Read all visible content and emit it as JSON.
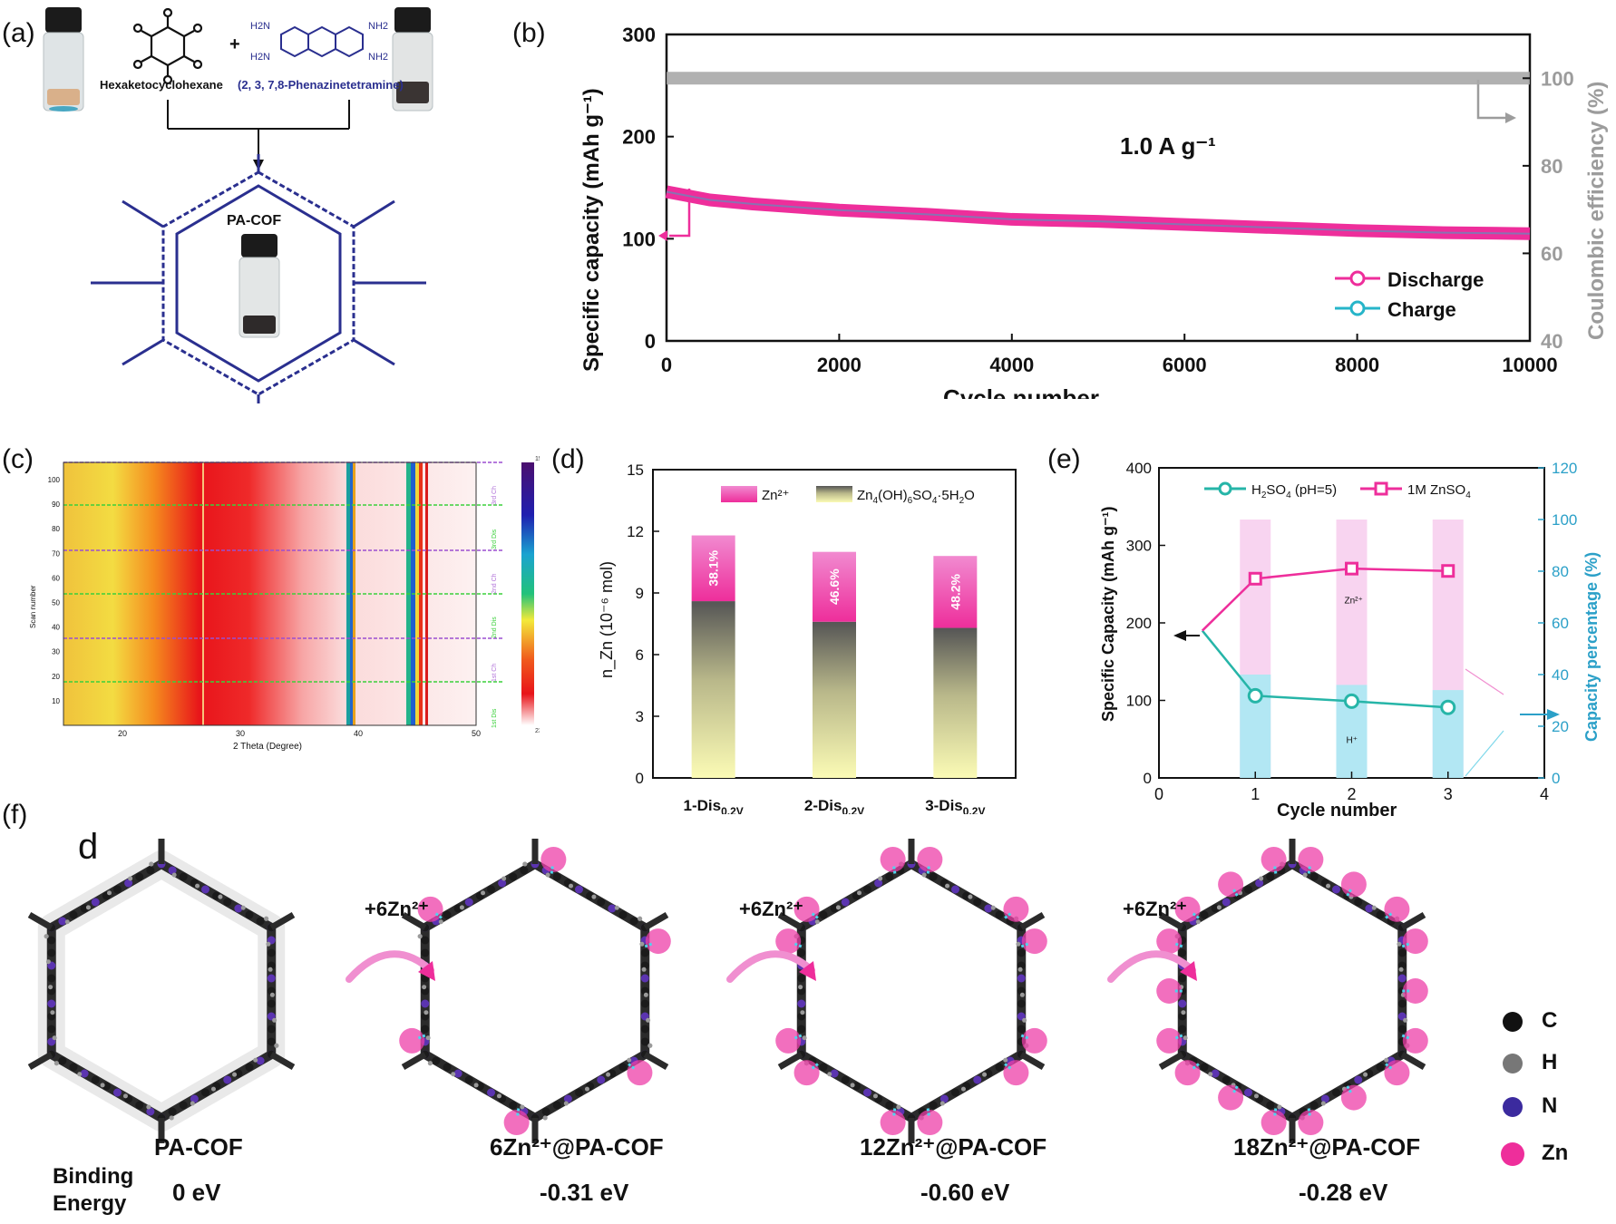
{
  "colors": {
    "pink": "#ee2e9b",
    "cyan": "#26b5c9",
    "gray": "#a9a9a9",
    "navy": "#1f2a8a",
    "purple": "#6b3fb5",
    "black": "#111111"
  },
  "panel_a": {
    "label": "(a)",
    "plus": "+",
    "reagent1": "Hexaketocyclohexane",
    "reagent2": "(2, 3, 7,8-Phenazinetetramine)",
    "amine_labels": [
      "H2N",
      "NH2",
      "H2N",
      "NH2"
    ],
    "product": "PA-COF"
  },
  "panel_c": {
    "label": "(c)",
    "xlabel": "2 Theta (Degree)",
    "ylabel": "Scan number",
    "xticks": [
      "20",
      "30",
      "40",
      "50"
    ],
    "yticks": [
      "10",
      "20",
      "30",
      "40",
      "50",
      "60",
      "70",
      "80",
      "90",
      "100"
    ],
    "colorbar_top": "1500",
    "colorbar_bottom": "230",
    "segments": [
      "1st Dis",
      "1st Ch",
      "2nd Dis",
      "2nd Ch",
      "3rd Dis",
      "3rd Ch"
    ]
  },
  "panel_f": {
    "label": "(f)",
    "corner": "d",
    "steps": [
      "+6Zn²⁺",
      "+6Zn²⁺",
      "+6Zn²⁺"
    ],
    "names": [
      "PA-COF",
      "6Zn²⁺@PA-COF",
      "12Zn²⁺@PA-COF",
      "18Zn²⁺@PA-COF"
    ],
    "energies": [
      "0 eV",
      "-0.31 eV",
      "-0.60 eV",
      "-0.28 eV"
    ],
    "binding_label_1": "Binding",
    "binding_label_2": "Energy",
    "legend": [
      {
        "label": "C"
      },
      {
        "label": "H"
      },
      {
        "label": "N"
      },
      {
        "label": "Zn"
      }
    ]
  },
  "chart_data": [
    {
      "id": "b",
      "label": "(b)",
      "type": "line",
      "xlabel": "Cycle number",
      "ylabel": "Specific capacity (mAh g⁻¹)",
      "y2label": "Coulombic efficiency (%)",
      "annotation": "1.0 A g⁻¹",
      "xlim": [
        0,
        10000
      ],
      "ylim": [
        0,
        300
      ],
      "y2lim": [
        40,
        110
      ],
      "xticks": [
        0,
        2000,
        4000,
        6000,
        8000,
        10000
      ],
      "yticks": [
        0,
        100,
        200,
        300
      ],
      "y2ticks": [
        40,
        60,
        80,
        100
      ],
      "series": [
        {
          "name": "Discharge",
          "x": [
            0,
            500,
            1000,
            2000,
            3000,
            4000,
            5000,
            6000,
            7000,
            8000,
            9000,
            10000
          ],
          "values": [
            146,
            138,
            134,
            128,
            124,
            119,
            117,
            114,
            111,
            108,
            106,
            105
          ]
        },
        {
          "name": "Charge",
          "x": [
            0,
            500,
            1000,
            2000,
            3000,
            4000,
            5000,
            6000,
            7000,
            8000,
            9000,
            10000
          ],
          "values": [
            146,
            138,
            134,
            128,
            124,
            119,
            117,
            114,
            111,
            108,
            106,
            105
          ]
        },
        {
          "axis": "right",
          "x": [
            0,
            2000,
            4000,
            6000,
            8000,
            10000
          ],
          "values": [
            100,
            100,
            100,
            100,
            100,
            100
          ]
        }
      ]
    },
    {
      "id": "d",
      "label": "(d)",
      "type": "bar",
      "ylabel": "n_Zn (10⁻⁶ mol)",
      "ylim": [
        0,
        15
      ],
      "yticks": [
        0,
        3,
        6,
        9,
        12,
        15
      ],
      "categories": [
        "1-Dis",
        "2-Dis",
        "3-Dis"
      ],
      "category_sub": "0.2V",
      "series": [
        {
          "name": "Zn(OH)SO·5HO",
          "values": [
            8.6,
            7.6,
            7.3
          ]
        },
        {
          "name": "Zn²⁺",
          "values": [
            3.2,
            3.4,
            3.5
          ]
        }
      ],
      "bar_labels": [
        "38.1%",
        "46.6%",
        "48.2%"
      ],
      "legend_zn": "Zn²⁺",
      "legend_zhs": [
        "Zn",
        "4",
        "(OH)",
        "6",
        "SO",
        "4",
        "·5H",
        "2",
        "O"
      ]
    },
    {
      "id": "e",
      "label": "(e)",
      "type": "line",
      "xlabel": "Cycle number",
      "ylabel": "Specific Capacity (mAh g⁻¹)",
      "y2label": "Capacity percentage (%)",
      "xlim": [
        0,
        4
      ],
      "ylim": [
        0,
        400
      ],
      "y2lim": [
        0,
        120
      ],
      "xticks": [
        0,
        1,
        2,
        3,
        4
      ],
      "yticks": [
        0,
        100,
        200,
        300,
        400
      ],
      "y2ticks": [
        0,
        20,
        40,
        60,
        80,
        100,
        120
      ],
      "series": [
        {
          "name": "HSO (pH=5)",
          "x": [
            1,
            2,
            3
          ],
          "values": [
            106,
            99,
            91
          ]
        },
        {
          "name": "1M ZnSO",
          "x": [
            1,
            2,
            3
          ],
          "values": [
            257,
            270,
            267
          ]
        }
      ],
      "legend_h2so4": [
        "H",
        "2",
        "SO",
        "4",
        " (pH=5)"
      ],
      "legend_znso4": [
        "1M ZnSO",
        "4"
      ],
      "bar_totals": [
        100,
        100,
        100
      ],
      "bar_h_percent": [
        40,
        36,
        34
      ],
      "bar_labels": [
        "Zn²⁺",
        "H⁺"
      ]
    }
  ]
}
